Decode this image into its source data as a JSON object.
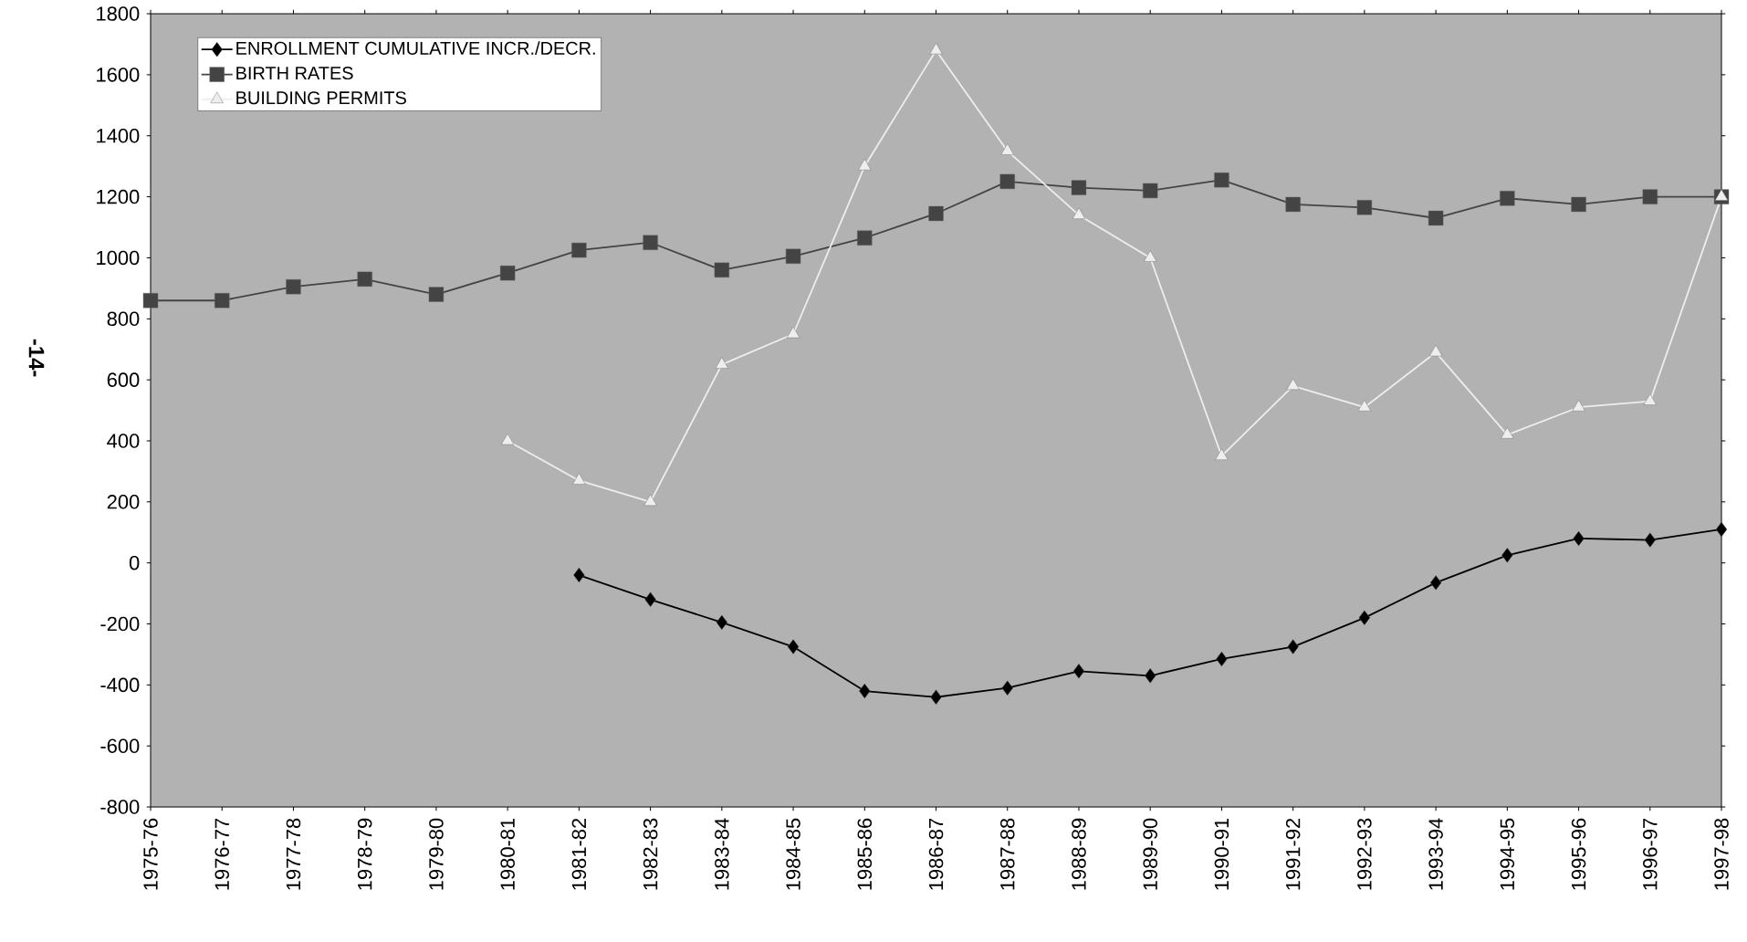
{
  "chart_data": {
    "type": "line",
    "categories": [
      "1975-76",
      "1976-77",
      "1977-78",
      "1978-79",
      "1979-80",
      "1980-81",
      "1981-82",
      "1982-83",
      "1983-84",
      "1984-85",
      "1985-86",
      "1986-87",
      "1987-88",
      "1988-89",
      "1989-90",
      "1990-91",
      "1991-92",
      "1992-93",
      "1993-94",
      "1994-95",
      "1995-96",
      "1996-97",
      "1997-98"
    ],
    "series": [
      {
        "name": "ENROLLMENT CUMULATIVE INCR./DECR.",
        "color": "#000000",
        "marker": "diamond",
        "line_style": "solid",
        "values": [
          null,
          null,
          null,
          null,
          null,
          null,
          -40,
          -120,
          -195,
          -275,
          -420,
          -440,
          -410,
          -355,
          -370,
          -315,
          -275,
          -180,
          -65,
          25,
          80,
          75,
          110
        ]
      },
      {
        "name": "BIRTH RATES",
        "color": "#444444",
        "marker": "square",
        "line_style": "solid",
        "values": [
          860,
          860,
          905,
          930,
          880,
          950,
          1025,
          1050,
          960,
          1005,
          1065,
          1145,
          1250,
          1230,
          1220,
          1255,
          1175,
          1165,
          1130,
          1195,
          1175,
          1200,
          1200
        ]
      },
      {
        "name": "BUILDING PERMITS",
        "color": "#eeeeee",
        "marker": "triangle",
        "line_style": "solid",
        "values": [
          null,
          null,
          null,
          null,
          null,
          400,
          270,
          200,
          650,
          750,
          1300,
          1680,
          1350,
          1140,
          1000,
          350,
          580,
          510,
          690,
          420,
          510,
          530,
          1200
        ]
      }
    ],
    "ylim": [
      -800,
      1800
    ],
    "yticks": [
      -800,
      -600,
      -400,
      -200,
      0,
      200,
      400,
      600,
      800,
      1000,
      1200,
      1400,
      1600,
      1800
    ],
    "grid": false,
    "legend": "top left",
    "annotations": [
      "-14-"
    ]
  }
}
